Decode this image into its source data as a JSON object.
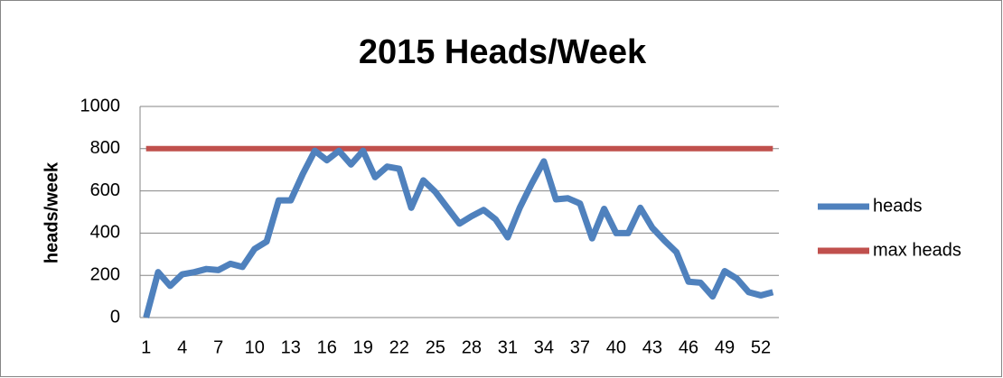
{
  "chart_data": {
    "type": "line",
    "title": "2015 Heads/Week",
    "y_label": "heads/week",
    "categories": [
      1,
      null,
      null,
      4,
      null,
      null,
      7,
      null,
      null,
      10,
      null,
      null,
      13,
      null,
      null,
      16,
      null,
      null,
      19,
      null,
      null,
      22,
      null,
      null,
      25,
      null,
      null,
      28,
      null,
      null,
      31,
      null,
      null,
      34,
      null,
      null,
      37,
      null,
      null,
      40,
      null,
      null,
      43,
      null,
      null,
      46,
      null,
      null,
      49,
      null,
      null,
      52,
      null
    ],
    "series": [
      {
        "name": "heads",
        "color": "#4f81bd",
        "values": [
          0,
          215,
          150,
          205,
          215,
          230,
          225,
          255,
          240,
          325,
          360,
          555,
          555,
          680,
          790,
          745,
          790,
          725,
          790,
          665,
          715,
          705,
          520,
          650,
          595,
          520,
          445,
          480,
          510,
          465,
          380,
          520,
          635,
          740,
          560,
          565,
          540,
          375,
          515,
          400,
          400,
          520,
          425,
          365,
          310,
          170,
          165,
          100,
          220,
          185,
          120,
          105,
          120
        ]
      },
      {
        "name": "max heads",
        "color": "#c0504d",
        "values": [
          800,
          800,
          800,
          800,
          800,
          800,
          800,
          800,
          800,
          800,
          800,
          800,
          800,
          800,
          800,
          800,
          800,
          800,
          800,
          800,
          800,
          800,
          800,
          800,
          800,
          800,
          800,
          800,
          800,
          800,
          800,
          800,
          800,
          800,
          800,
          800,
          800,
          800,
          800,
          800,
          800,
          800,
          800,
          800,
          800,
          800,
          800,
          800,
          800,
          800,
          800,
          800,
          800
        ]
      }
    ],
    "ylim": [
      0,
      1000
    ],
    "yticks": [
      0,
      200,
      400,
      600,
      800,
      1000
    ],
    "grid": true,
    "legend": "right"
  }
}
